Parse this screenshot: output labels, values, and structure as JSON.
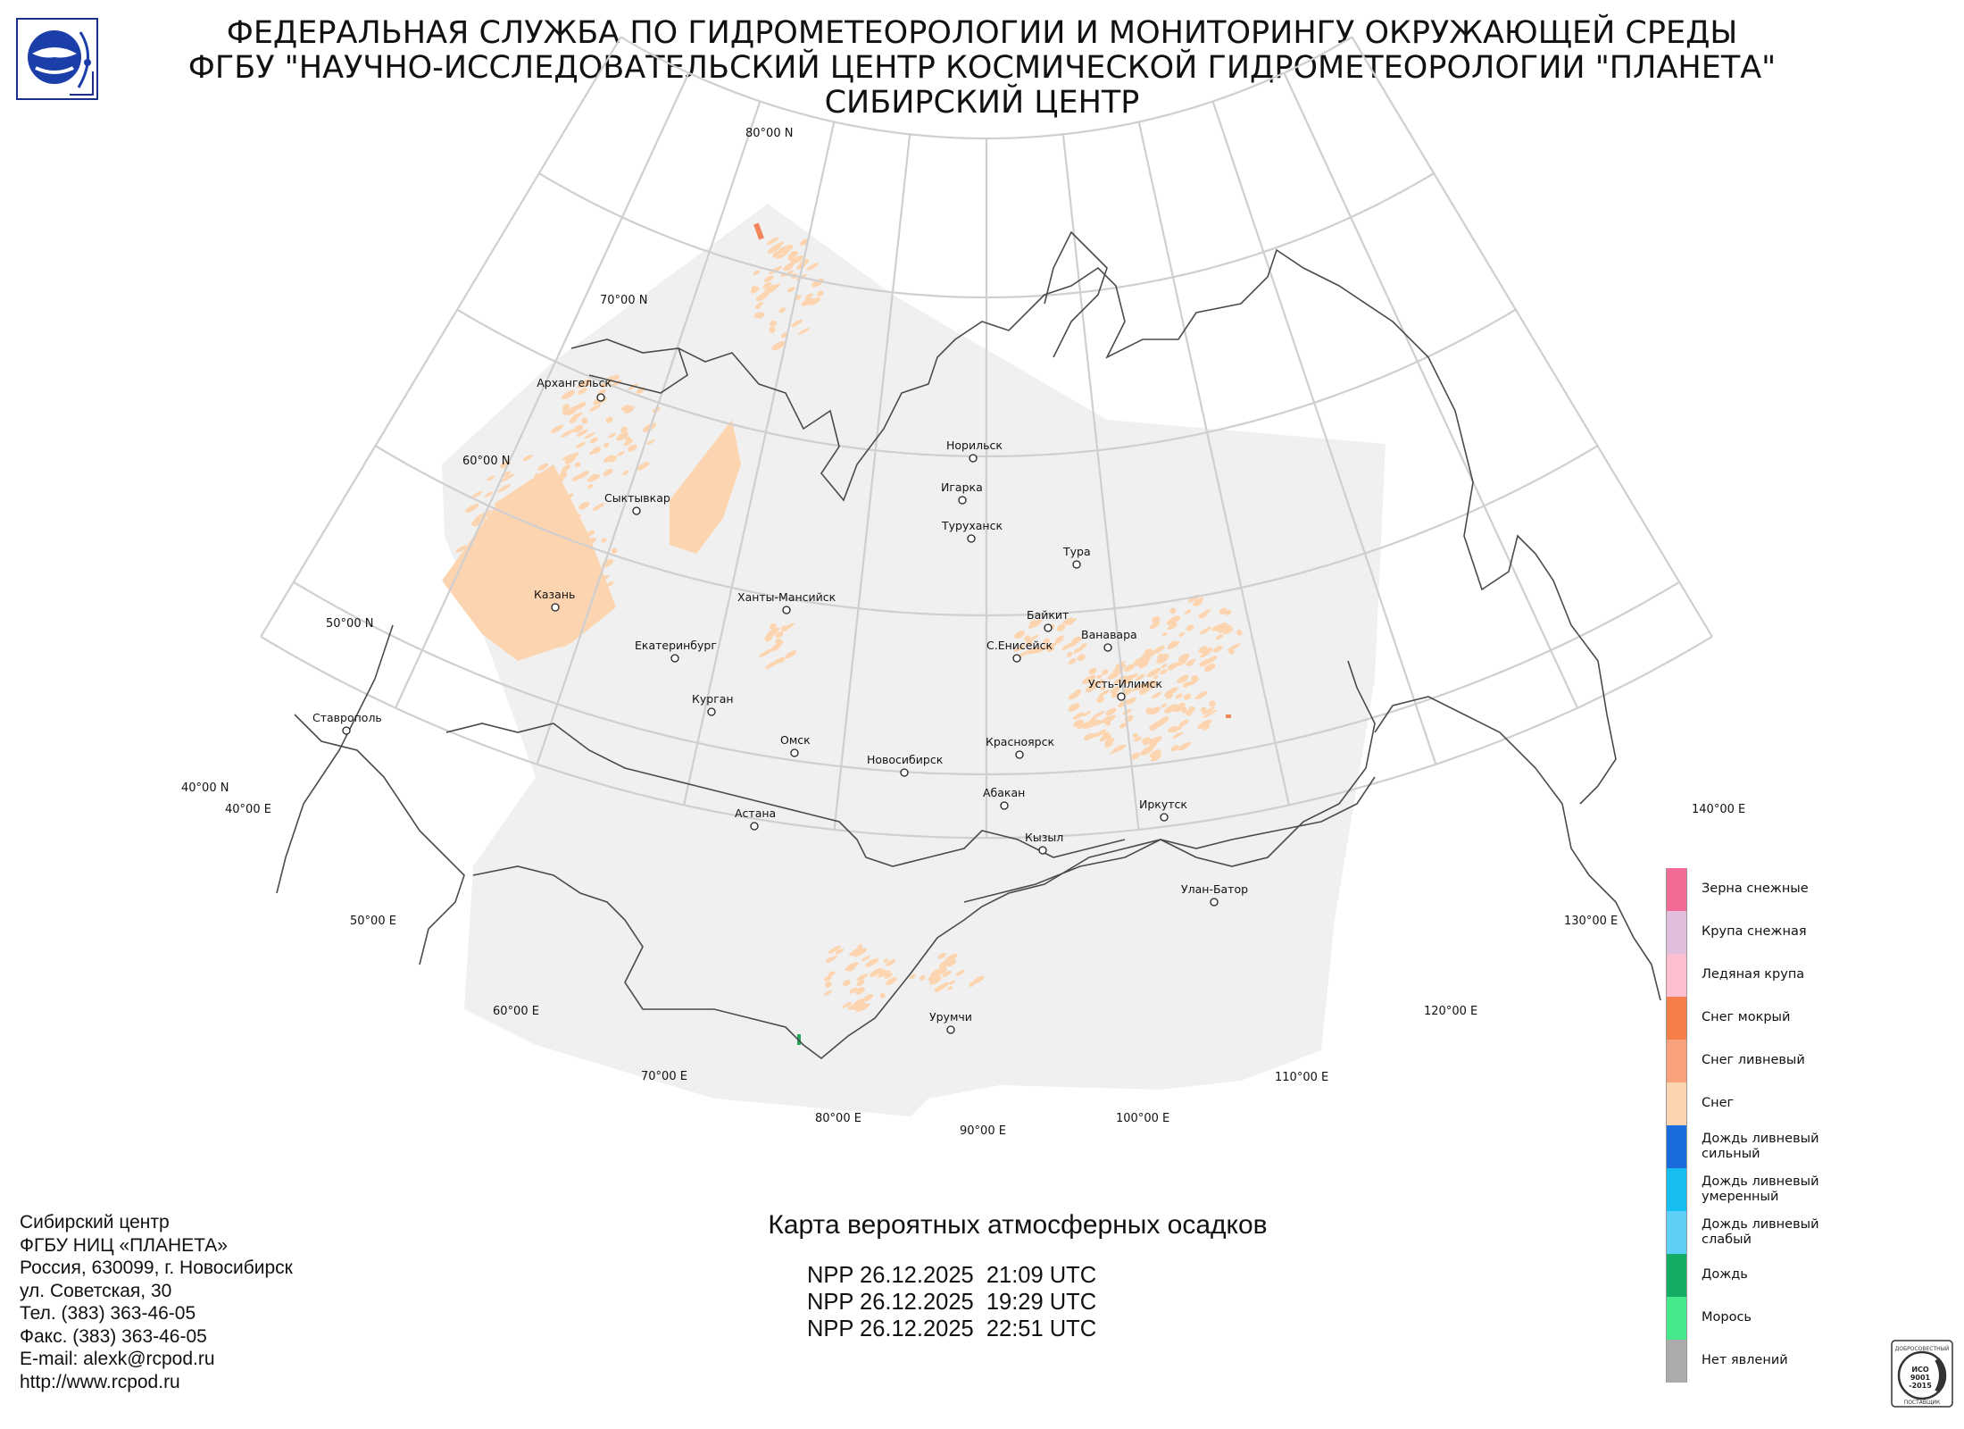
{
  "header": {
    "line1": "ФЕДЕРАЛЬНАЯ СЛУЖБА ПО ГИДРОМЕТЕОРОЛОГИИ И МОНИТОРИНГУ ОКРУЖАЮЩЕЙ СРЕДЫ",
    "line2": "ФГБУ \"НАУЧНО-ИССЛЕДОВАТЕЛЬСКИЙ ЦЕНТР КОСМИЧЕСКОЙ ГИДРОМЕТЕОРОЛОГИИ \"ПЛАНЕТА\"",
    "line3": "СИБИРСКИЙ ЦЕНТР"
  },
  "map": {
    "latitude_labels": [
      "80°00 N",
      "70°00 N",
      "60°00 N",
      "50°00 N",
      "40°00 N"
    ],
    "longitude_labels": [
      "40°00 E",
      "50°00 E",
      "60°00 E",
      "70°00 E",
      "80°00 E",
      "90°00 E",
      "100°00 E",
      "110°00 E",
      "120°00 E",
      "130°00 E",
      "140°00 E"
    ],
    "cities": [
      "Архангельск",
      "Сыктывкар",
      "Казань",
      "Екатеринбург",
      "Ставрополь",
      "Курган",
      "Ханты-Мансийск",
      "Омск",
      "Астана",
      "Новосибирск",
      "Норильск",
      "Игарка",
      "Туруханск",
      "Тура",
      "Байкит",
      "Ванавара",
      "С.Енисейск",
      "Усть-Илимск",
      "Красноярск",
      "Абакан",
      "Кызыл",
      "Иркутск",
      "Улан-Батор",
      "Урумчи"
    ],
    "colors": {
      "graticule": "#cfcfcf",
      "coverage": "#f0f0f0",
      "coastline": "#4a4a4a",
      "snow": "#fcd5b0",
      "wet_snow": "#f4845a",
      "rain": "#1faa5a"
    }
  },
  "legend": {
    "items": [
      {
        "label": "Зерна снежные",
        "color": "#f26b94"
      },
      {
        "label": "Крупа снежная",
        "color": "#e1bfdc"
      },
      {
        "label": "Ледяная крупа",
        "color": "#fcbfcf"
      },
      {
        "label": "Снег мокрый",
        "color": "#f47d4a"
      },
      {
        "label": "Снег ливневый",
        "color": "#f7a27c"
      },
      {
        "label": "Снег",
        "color": "#fcd5b0"
      },
      {
        "label": "Дождь ливневый сильный",
        "color": "#1a6bdb"
      },
      {
        "label": "Дождь ливневый умеренный",
        "color": "#16bdf1"
      },
      {
        "label": "Дождь ливневый слабый",
        "color": "#5ecff7"
      },
      {
        "label": "Дождь",
        "color": "#12ad62"
      },
      {
        "label": "Морось",
        "color": "#45e88a"
      },
      {
        "label": "Нет явлений",
        "color": "#ababab"
      }
    ]
  },
  "footer": {
    "lines": [
      "Сибирский центр",
      "ФГБУ НИЦ «ПЛАНЕТА»",
      "Россия, 630099, г. Новосибирск",
      "ул. Советская, 30",
      "Тел. (383) 363-46-05",
      "Факс. (383) 363-46-05",
      "E-mail: alexk@rcpod.ru",
      "http://www.rcpod.ru"
    ]
  },
  "map_title": "Карта вероятных атмосферных осадков",
  "passes": [
    "NPP 26.12.2025  21:09 UTC",
    "NPP 26.12.2025  19:29 UTC",
    "NPP 26.12.2025  22:51 UTC"
  ],
  "iso_badge": {
    "top_text": "ДОБРОСОВЕСТНЫЙ",
    "center_text": "ИСО 9001 -2015",
    "bottom_text": "ПОСТАВЩИК"
  }
}
